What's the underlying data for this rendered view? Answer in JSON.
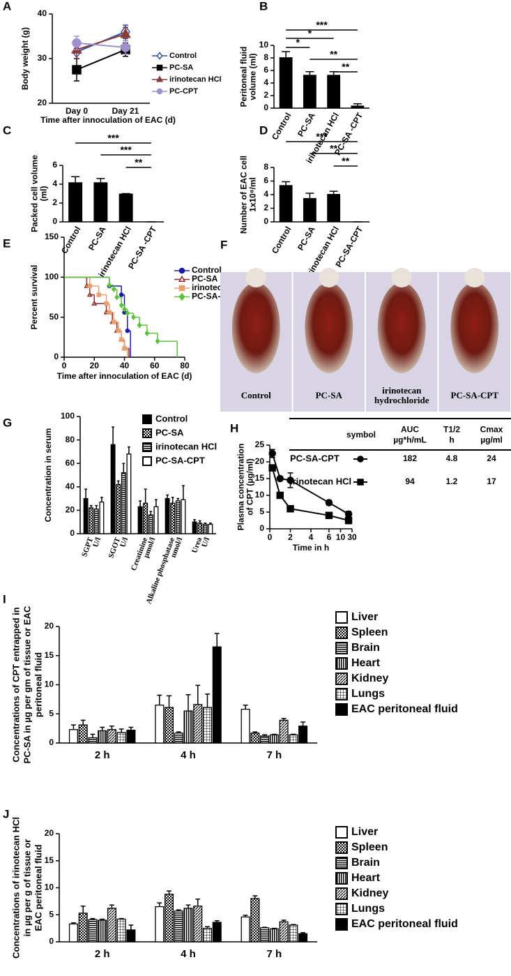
{
  "chart_data": [
    {
      "panel": "A",
      "type": "line",
      "categories": [
        "Day 0",
        "Day 21"
      ],
      "xlabel": "Time after innoculation of EAC (d)",
      "ylabel": "Body weight (g)",
      "ylim": [
        20,
        40
      ],
      "yticks": [
        20,
        30,
        40
      ],
      "series": [
        {
          "name": "Control",
          "color": "#3050a0",
          "marker": "diamond-open",
          "values": [
            31.5,
            36
          ],
          "errors": [
            1.5,
            1.5
          ]
        },
        {
          "name": "PC-SA",
          "color": "#000000",
          "marker": "square",
          "values": [
            27.5,
            32
          ],
          "errors": [
            2.5,
            1.5
          ]
        },
        {
          "name": "irinotecan HCl",
          "color": "#8b3a3a",
          "marker": "triangle",
          "values": [
            32,
            35.5
          ],
          "errors": [
            2,
            1.5
          ]
        },
        {
          "name": "PC-CPT",
          "color": "#a090d0",
          "marker": "circle",
          "values": [
            33.5,
            32.5
          ],
          "errors": [
            1.5,
            1.5
          ]
        }
      ]
    },
    {
      "panel": "B",
      "type": "bar",
      "ylabel": [
        "Peritoneal fluid",
        "volume (ml)"
      ],
      "categories": [
        "Control",
        "PC-SA",
        "irinotecan HCl",
        "PC-SA -CPT"
      ],
      "values": [
        8.1,
        5.3,
        5.3,
        0.4
      ],
      "errors": [
        0.9,
        0.5,
        0.5,
        0.3
      ],
      "color": "#000000",
      "ylim": [
        0,
        10
      ],
      "yticks": [
        0,
        2,
        4,
        6,
        8,
        10
      ],
      "significance": [
        "***",
        "*",
        "*",
        "**",
        "**"
      ]
    },
    {
      "panel": "C",
      "type": "bar",
      "ylabel": [
        "Packed cell volume",
        "(ml)"
      ],
      "categories": [
        "Control",
        "PC-SA",
        "irinotecan HCl",
        "PC-SA -CPT"
      ],
      "values": [
        4.2,
        4.2,
        3.0,
        0
      ],
      "errors": [
        0.6,
        0.4,
        0,
        0
      ],
      "color": "#000000",
      "ylim": [
        0,
        6
      ],
      "yticks": [
        0,
        2,
        4,
        6
      ],
      "significance": [
        "***",
        "***",
        "**"
      ]
    },
    {
      "panel": "D",
      "type": "bar",
      "ylabel": [
        "Number of EAC cell",
        "1x10⁸/ml"
      ],
      "categories": [
        "Control",
        "PC-SA",
        "irinotecan HCl",
        "PC-SA-CPT"
      ],
      "values": [
        5.4,
        3.5,
        4.1,
        0
      ],
      "errors": [
        0.5,
        0.7,
        0.4,
        0
      ],
      "color": "#000000",
      "ylim": [
        0,
        8
      ],
      "yticks": [
        0,
        2,
        4,
        6,
        8
      ],
      "significance": [
        "***",
        "**",
        "**"
      ]
    },
    {
      "panel": "E",
      "type": "step",
      "xlabel": "Time after innoculation of EAC (d)",
      "ylabel": "Percent survival",
      "xlim": [
        0,
        80
      ],
      "xticks": [
        0,
        20,
        40,
        60,
        80
      ],
      "ylim": [
        0,
        150
      ],
      "yticks": [
        0,
        50,
        100,
        150
      ],
      "series": [
        {
          "name": "Control",
          "color": "#1a1aa0",
          "marker": "circle",
          "x": [
            0,
            30,
            38,
            40,
            42,
            44
          ],
          "values": [
            100,
            89,
            78,
            56,
            33,
            0
          ]
        },
        {
          "name": "PC-SA",
          "color": "#8b2a2a",
          "marker": "triangle-open",
          "x": [
            0,
            15,
            17,
            20,
            28,
            32,
            35,
            38,
            40,
            43
          ],
          "values": [
            100,
            89,
            78,
            67,
            56,
            44,
            33,
            22,
            11,
            0
          ]
        },
        {
          "name": "irinotecan HCl",
          "color": "#e8a070",
          "marker": "square",
          "x": [
            0,
            17,
            23,
            28,
            30,
            33,
            36,
            38,
            40,
            42
          ],
          "values": [
            100,
            89,
            78,
            67,
            56,
            44,
            33,
            22,
            11,
            0
          ]
        },
        {
          "name": "PC-SA-CPT",
          "color": "#5cc03a",
          "marker": "diamond",
          "x": [
            0,
            30,
            33,
            35,
            38,
            40,
            42,
            46,
            50,
            55,
            62,
            75
          ],
          "values": [
            100,
            90,
            85,
            75,
            65,
            60,
            55,
            50,
            40,
            30,
            20,
            0
          ]
        }
      ]
    },
    {
      "panel": "F",
      "type": "image",
      "labels": [
        "Control",
        "PC-SA",
        [
          "irinotecan",
          "hydrochloride"
        ],
        "PC-SA-CPT"
      ]
    },
    {
      "panel": "G",
      "type": "grouped_bar",
      "ylabel": "Concentration in serum",
      "categories": [
        [
          "SGPT",
          "U/l"
        ],
        [
          "SGOT",
          "U/l"
        ],
        [
          "Creatinine",
          "µmol/l"
        ],
        [
          "Alkaline phosphatase",
          "nmol/l"
        ],
        [
          "Urea",
          "U/l"
        ]
      ],
      "ylim": [
        0,
        100
      ],
      "yticks": [
        0,
        20,
        40,
        60,
        80,
        100
      ],
      "series": [
        {
          "name": "Control",
          "color": "#000000",
          "pattern": "solid",
          "values": [
            30,
            76,
            23,
            30,
            10
          ],
          "errors": [
            8,
            15,
            5,
            3,
            2
          ]
        },
        {
          "name": "PC-SA",
          "color": "#000000",
          "pattern": "crosshatch",
          "values": [
            22,
            42,
            26,
            26,
            9
          ],
          "errors": [
            2,
            3,
            12,
            5,
            2
          ]
        },
        {
          "name": "irinotecan HCl",
          "color": "#000000",
          "pattern": "hstripes",
          "values": [
            21,
            52,
            16,
            28,
            8
          ],
          "errors": [
            3,
            8,
            3,
            2,
            1
          ]
        },
        {
          "name": "PC-SA-CPT",
          "color": "#000000",
          "pattern": "none",
          "values": [
            27,
            68,
            23,
            29,
            8
          ],
          "errors": [
            4,
            6,
            6,
            12,
            1
          ]
        }
      ]
    },
    {
      "panel": "H",
      "type": "line",
      "xlabel": "Time in h",
      "ylabel": [
        "Plasma concentration",
        "of CPT (µg/ml)"
      ],
      "x": [
        0.25,
        1,
        2,
        6,
        24
      ],
      "xlim": [
        0,
        30
      ],
      "xticks": [
        0,
        2,
        4,
        6,
        10,
        30
      ],
      "x_break": true,
      "ylim": [
        0,
        25
      ],
      "yticks": [
        0,
        5,
        10,
        15,
        20,
        25
      ],
      "series": [
        {
          "color": "#000000",
          "marker": "circle",
          "values": [
            22.5,
            15,
            14.5,
            7.8,
            4.4
          ],
          "errors": [
            1.2,
            0.5,
            2.2,
            0.7,
            0.8
          ]
        },
        {
          "color": "#000000",
          "marker": "square",
          "values": [
            18.2,
            10,
            6,
            4,
            2.5
          ],
          "errors": [
            0.8,
            0.5,
            0.7,
            0.6,
            1
          ]
        }
      ],
      "table": {
        "columns": [
          "symbol",
          [
            "AUC",
            "µg*h/mL"
          ],
          [
            "T1/2",
            "h"
          ],
          [
            "Cmax",
            "µg/ml"
          ]
        ],
        "rows": [
          [
            "PC-SA-CPT",
            "182",
            "4.8",
            "24"
          ],
          [
            "irinotecan HCl",
            "94",
            "1.2",
            "17"
          ]
        ]
      }
    },
    {
      "panel": "I",
      "type": "grouped_bar",
      "ylabel": [
        "Concentrations of CPT entrapped in",
        "PC-SA in µg per gm of tissue or EAC",
        "peritoneal fluid"
      ],
      "categories": [
        "2 h",
        "4 h",
        "7 h"
      ],
      "ylim": [
        0,
        20
      ],
      "yticks": [
        0,
        5,
        10,
        15,
        20
      ],
      "series": [
        {
          "name": "Liver",
          "color": "#000000",
          "pattern": "none",
          "values": [
            2.3,
            6.5,
            5.8
          ],
          "errors": [
            0.8,
            1.7,
            0.7
          ]
        },
        {
          "name": "Spleen",
          "color": "#000000",
          "pattern": "crosshatch",
          "values": [
            3.1,
            6.1,
            1.7
          ],
          "errors": [
            0.8,
            2.0,
            0.2
          ]
        },
        {
          "name": "Brain",
          "color": "#000000",
          "pattern": "hstripes",
          "values": [
            0.9,
            1.7,
            1.2
          ],
          "errors": [
            0.6,
            0.2,
            0.2
          ]
        },
        {
          "name": "Heart",
          "color": "#000000",
          "pattern": "vstripes",
          "values": [
            2.1,
            5.5,
            1.4
          ],
          "errors": [
            0.6,
            2.8,
            0.1
          ]
        },
        {
          "name": "Kidney",
          "color": "#000000",
          "pattern": "diagonal",
          "values": [
            2.3,
            6.6,
            3.9
          ],
          "errors": [
            0.6,
            3.3,
            0.3
          ]
        },
        {
          "name": "Lungs",
          "color": "#000000",
          "pattern": "grid",
          "values": [
            1.8,
            6.1,
            1.4
          ],
          "errors": [
            0.6,
            2.3,
            0.1
          ]
        },
        {
          "name": "EAC peritoneal fluid",
          "color": "#000000",
          "pattern": "solid",
          "values": [
            2.2,
            16.5,
            2.9
          ],
          "errors": [
            0.5,
            2.3,
            0.7
          ]
        }
      ]
    },
    {
      "panel": "J",
      "type": "grouped_bar",
      "ylabel": [
        "Concentrations of irinotecan HCl",
        "in µg per g of tissue or",
        "EAC peritoneal fluid"
      ],
      "categories": [
        "2 h",
        "4 h",
        "7 h"
      ],
      "ylim": [
        0,
        20
      ],
      "yticks": [
        0,
        5,
        10,
        15,
        20
      ],
      "series": [
        {
          "name": "Liver",
          "color": "#000000",
          "pattern": "none",
          "values": [
            3.3,
            6.5,
            4.6
          ],
          "errors": [
            0.2,
            0.7,
            0.3
          ]
        },
        {
          "name": "Spleen",
          "color": "#000000",
          "pattern": "crosshatch",
          "values": [
            5.3,
            8.8,
            8.0
          ],
          "errors": [
            1.3,
            0.6,
            0.5
          ]
        },
        {
          "name": "Brain",
          "color": "#000000",
          "pattern": "hstripes",
          "values": [
            4.1,
            5.7,
            2.6
          ],
          "errors": [
            0.2,
            0.2,
            0.1
          ]
        },
        {
          "name": "Heart",
          "color": "#000000",
          "pattern": "vstripes",
          "values": [
            4.0,
            6.2,
            2.4
          ],
          "errors": [
            0.2,
            0.6,
            0.1
          ]
        },
        {
          "name": "Kidney",
          "color": "#000000",
          "pattern": "diagonal",
          "values": [
            6.2,
            6.6,
            3.7
          ],
          "errors": [
            0.6,
            1.3,
            0.3
          ]
        },
        {
          "name": "Lungs",
          "color": "#000000",
          "pattern": "grid",
          "values": [
            4.2,
            2.5,
            3.1
          ],
          "errors": [
            0.1,
            0.3,
            0.1
          ]
        },
        {
          "name": "EAC peritoneal fluid",
          "color": "#000000",
          "pattern": "solid",
          "values": [
            2.2,
            3.6,
            1.5
          ],
          "errors": [
            0.9,
            0.3,
            0.2
          ]
        }
      ]
    }
  ]
}
